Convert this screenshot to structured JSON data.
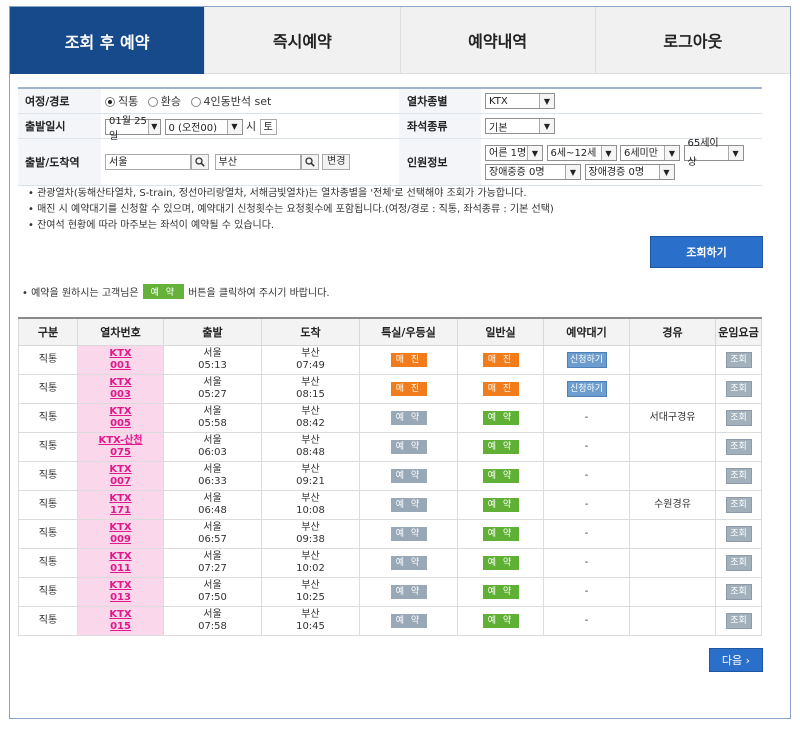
{
  "tabs": [
    "조회 후 예약",
    "즉시예약",
    "예약내역",
    "로그아웃"
  ],
  "search": {
    "route_label": "여정/경로",
    "route_options": [
      "직통",
      "환승",
      "4인동반석 set"
    ],
    "train_type_label": "열차종별",
    "train_type": "KTX",
    "date_label": "출발일시",
    "month_day": "01월 25일",
    "hour": "0 (오전00)",
    "hour_suffix": "시",
    "weekday": "토",
    "seat_type_label": "좌석종류",
    "seat_type": "기본",
    "station_label": "출발/도착역",
    "origin": "서울",
    "destination": "부산",
    "change_label": "변경",
    "people_label": "인원정보",
    "people": [
      "어른 1명",
      "6세~12세",
      "6세미만",
      "65세이상",
      "장애중증 0명",
      "장애경증 0명"
    ]
  },
  "notes": [
    "관광열차(동해산타열차, S-train, 정선아리랑열차, 서해금빛열차)는 열차종별을 '전체'로 선택해야 조회가 가능합니다.",
    "매진 시 예약대기를 신청할 수 있으며, 예약대기 신청횟수는 요청횟수에 포함됩니다.(여정/경로 : 직통, 좌석종류 : 기본 선택)",
    "잔여석 현황에 따라 마주보는 좌석이 예약될 수 있습니다."
  ],
  "search_button": "조회하기",
  "hint": {
    "pre": "예약을 원하시는 고객님은",
    "badge": "예 약",
    "post": "버튼을 클릭하여 주시기 바랍니다."
  },
  "columns": [
    "구분",
    "열차번호",
    "출발",
    "도착",
    "특실/우등실",
    "일반실",
    "예약대기",
    "경유",
    "운임요금"
  ],
  "rows": [
    {
      "type": "직통",
      "train": [
        "KTX",
        "001"
      ],
      "dep": [
        "서울",
        "05:13"
      ],
      "arr": [
        "부산",
        "07:49"
      ],
      "special": "매 진",
      "normal": "매 진",
      "wait": "신청하기",
      "via": "",
      "fare": "조회"
    },
    {
      "type": "직통",
      "train": [
        "KTX",
        "003"
      ],
      "dep": [
        "서울",
        "05:27"
      ],
      "arr": [
        "부산",
        "08:15"
      ],
      "special": "매 진",
      "normal": "매 진",
      "wait": "신청하기",
      "via": "",
      "fare": "조회"
    },
    {
      "type": "직통",
      "train": [
        "KTX",
        "005"
      ],
      "dep": [
        "서울",
        "05:58"
      ],
      "arr": [
        "부산",
        "08:42"
      ],
      "special": "예 약",
      "normal": "예 약",
      "wait": "-",
      "via": "서대구경유",
      "fare": "조회"
    },
    {
      "type": "직통",
      "train": [
        "KTX-산천",
        "075"
      ],
      "dep": [
        "서울",
        "06:03"
      ],
      "arr": [
        "부산",
        "08:48"
      ],
      "special": "예 약",
      "normal": "예 약",
      "wait": "-",
      "via": "",
      "fare": "조회"
    },
    {
      "type": "직통",
      "train": [
        "KTX",
        "007"
      ],
      "dep": [
        "서울",
        "06:33"
      ],
      "arr": [
        "부산",
        "09:21"
      ],
      "special": "예 약",
      "normal": "예 약",
      "wait": "-",
      "via": "",
      "fare": "조회"
    },
    {
      "type": "직통",
      "train": [
        "KTX",
        "171"
      ],
      "dep": [
        "서울",
        "06:48"
      ],
      "arr": [
        "부산",
        "10:08"
      ],
      "special": "예 약",
      "normal": "예 약",
      "wait": "-",
      "via": "수원경유",
      "fare": "조회"
    },
    {
      "type": "직통",
      "train": [
        "KTX",
        "009"
      ],
      "dep": [
        "서울",
        "06:57"
      ],
      "arr": [
        "부산",
        "09:38"
      ],
      "special": "예 약",
      "normal": "예 약",
      "wait": "-",
      "via": "",
      "fare": "조회"
    },
    {
      "type": "직통",
      "train": [
        "KTX",
        "011"
      ],
      "dep": [
        "서울",
        "07:27"
      ],
      "arr": [
        "부산",
        "10:02"
      ],
      "special": "예 약",
      "normal": "예 약",
      "wait": "-",
      "via": "",
      "fare": "조회"
    },
    {
      "type": "직통",
      "train": [
        "KTX",
        "013"
      ],
      "dep": [
        "서울",
        "07:50"
      ],
      "arr": [
        "부산",
        "10:25"
      ],
      "special": "예 약",
      "normal": "예 약",
      "wait": "-",
      "via": "",
      "fare": "조회"
    },
    {
      "type": "직통",
      "train": [
        "KTX",
        "015"
      ],
      "dep": [
        "서울",
        "07:58"
      ],
      "arr": [
        "부산",
        "10:45"
      ],
      "special": "예 약",
      "normal": "예 약",
      "wait": "-",
      "via": "",
      "fare": "조회"
    }
  ],
  "next_button": "다음 ›",
  "colors": {
    "tab_active": "#174a8b",
    "sold_out": "#f07c1c",
    "reserve": "#5fb034",
    "train_cell": "#fad7ea",
    "train_link": "#e0198a",
    "button": "#2a6fc9"
  }
}
